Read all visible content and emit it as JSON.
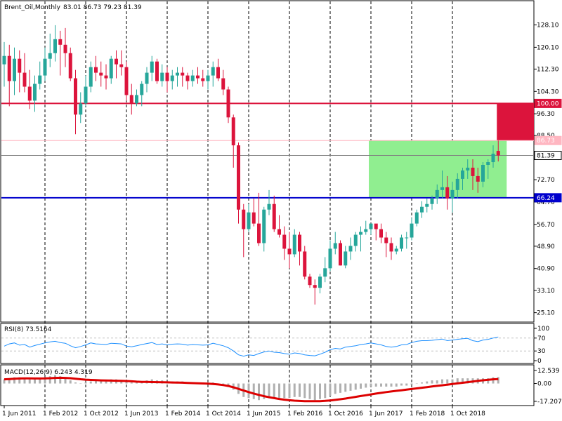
{
  "chart_data": [
    {
      "type": "candlestick",
      "header": {
        "symbol": "Brent_Oil,Monthly",
        "ohlc": "83.01 86.73 79.23 81.39"
      },
      "price_axis_ticks": [
        "128.10",
        "120.10",
        "112.30",
        "104.30",
        "96.30",
        "88.50",
        "80.50",
        "72.70",
        "64.70",
        "56.70",
        "48.90",
        "40.90",
        "33.10",
        "25.10"
      ],
      "price_range": [
        23.5,
        132.0
      ],
      "time_axis_labels": [
        "1 Jun 2011",
        "1 Feb 2012",
        "1 Oct 2012",
        "1 Jun 2013",
        "1 Feb 2014",
        "1 Oct 2014",
        "1 Jun 2015",
        "1 Feb 2016",
        "1 Oct 2016",
        "1 Jun 2017",
        "1 Feb 2018",
        "1 Oct 2018"
      ],
      "grid": "vertical dashed at time labels",
      "levels": [
        {
          "price": 100.0,
          "label": "100.00",
          "color": "#dc143c"
        },
        {
          "price": 86.73,
          "label": "86.73",
          "color": "#ffb6c1"
        },
        {
          "price": 81.39,
          "label": "81.39",
          "color": "#808080"
        },
        {
          "price": 66.24,
          "label": "66.24",
          "color": "#0000cd"
        }
      ],
      "zones": [
        {
          "price_from": 66.24,
          "price_to": 86.73,
          "color": "#90ee90",
          "from_label": "1 Jun 2017",
          "to_label": "1 Oct 2018"
        },
        {
          "price_from": 86.73,
          "price_to": 100.0,
          "color": "#dc143c",
          "from_label": "1 Oct 2018",
          "to_label": "1 Oct 2018"
        }
      ],
      "colors": {
        "bull": "#26a69a",
        "bear": "#dc143c"
      },
      "candles": [
        [
          114,
          122,
          106,
          117
        ],
        [
          117,
          121,
          99,
          108
        ],
        [
          108,
          120,
          103,
          116
        ],
        [
          116,
          119,
          104,
          111
        ],
        [
          111,
          118,
          104,
          106
        ],
        [
          106,
          112,
          98,
          101
        ],
        [
          101,
          110,
          97,
          107
        ],
        [
          107,
          115,
          105,
          110
        ],
        [
          110,
          120,
          108,
          116
        ],
        [
          116,
          125,
          113,
          118
        ],
        [
          118,
          128,
          115,
          123
        ],
        [
          123,
          126,
          110,
          121
        ],
        [
          121,
          127,
          113,
          118
        ],
        [
          118,
          120,
          108,
          109
        ],
        [
          109,
          112,
          89,
          96
        ],
        [
          96,
          104,
          93,
          100
        ],
        [
          100,
          110,
          99,
          106
        ],
        [
          106,
          115,
          104,
          113
        ],
        [
          113,
          117,
          108,
          111
        ],
        [
          111,
          115,
          106,
          110
        ],
        [
          110,
          114,
          105,
          109
        ],
        [
          109,
          117,
          107,
          116
        ],
        [
          116,
          119,
          109,
          114
        ],
        [
          114,
          119,
          110,
          113
        ],
        [
          113,
          115,
          101,
          103
        ],
        [
          103,
          107,
          96,
          100
        ],
        [
          100,
          105,
          99,
          103
        ],
        [
          103,
          108,
          99,
          107
        ],
        [
          107,
          113,
          104,
          111
        ],
        [
          111,
          117,
          108,
          115
        ],
        [
          115,
          116,
          107,
          108
        ],
        [
          108,
          114,
          106,
          111
        ],
        [
          111,
          113,
          104,
          108
        ],
        [
          108,
          112,
          105,
          110
        ],
        [
          110,
          113,
          106,
          111
        ],
        [
          111,
          113,
          106,
          110
        ],
        [
          110,
          111,
          105,
          108
        ],
        [
          108,
          112,
          106,
          110
        ],
        [
          110,
          113,
          107,
          109
        ],
        [
          109,
          112,
          106,
          108
        ],
        [
          108,
          112,
          105,
          110
        ],
        [
          110,
          115,
          106,
          113
        ],
        [
          113,
          116,
          108,
          109
        ],
        [
          109,
          112,
          103,
          105
        ],
        [
          105,
          106,
          93,
          95
        ],
        [
          95,
          96,
          77,
          85
        ],
        [
          85,
          86,
          57,
          62
        ],
        [
          62,
          64,
          45,
          55
        ],
        [
          55,
          64,
          54,
          61
        ],
        [
          61,
          66,
          56,
          57
        ],
        [
          57,
          68,
          49,
          50
        ],
        [
          50,
          63,
          47,
          62
        ],
        [
          62,
          69,
          60,
          64
        ],
        [
          64,
          67,
          54,
          55
        ],
        [
          55,
          60,
          52,
          53
        ],
        [
          53,
          56,
          44,
          48
        ],
        [
          48,
          54,
          41,
          46
        ],
        [
          46,
          55,
          45,
          53
        ],
        [
          53,
          54,
          42,
          47
        ],
        [
          47,
          49,
          37,
          38
        ],
        [
          38,
          39,
          34,
          35
        ],
        [
          35,
          37,
          28,
          34
        ],
        [
          34,
          39,
          32,
          38
        ],
        [
          38,
          45,
          36,
          41
        ],
        [
          41,
          51,
          40,
          48
        ],
        [
          48,
          54,
          46,
          50
        ],
        [
          50,
          51,
          42,
          42
        ],
        [
          42,
          49,
          41,
          47
        ],
        [
          47,
          52,
          44,
          49
        ],
        [
          49,
          54,
          47,
          53
        ],
        [
          53,
          56,
          47,
          54
        ],
        [
          54,
          58,
          53,
          55
        ],
        [
          55,
          57,
          53,
          57
        ],
        [
          57,
          56,
          51,
          55
        ],
        [
          55,
          57,
          50,
          52
        ],
        [
          52,
          54,
          45,
          50
        ],
        [
          50,
          52,
          44,
          47
        ],
        [
          47,
          49,
          46,
          48
        ],
        [
          48,
          53,
          47,
          52
        ],
        [
          52,
          54,
          48,
          52
        ],
        [
          52,
          59,
          51,
          57
        ],
        [
          57,
          62,
          56,
          61
        ],
        [
          61,
          65,
          59,
          63
        ],
        [
          63,
          66,
          61,
          64
        ],
        [
          64,
          67,
          62,
          66
        ],
        [
          66,
          71,
          64,
          69
        ],
        [
          69,
          76,
          66,
          70
        ],
        [
          70,
          74,
          62,
          66
        ],
        [
          66,
          72,
          61,
          69
        ],
        [
          69,
          75,
          66,
          73
        ],
        [
          73,
          77,
          69,
          76
        ],
        [
          76,
          80,
          73,
          77
        ],
        [
          77,
          80,
          69,
          74
        ],
        [
          74,
          77,
          68,
          72
        ],
        [
          72,
          79,
          70,
          78
        ],
        [
          78,
          80,
          73,
          79
        ],
        [
          79,
          85,
          77,
          82
        ],
        [
          83.01,
          86.73,
          79.23,
          81.39
        ]
      ]
    },
    {
      "type": "line",
      "indicator": "RSI",
      "header": "RSI(8) 73.5164",
      "axis_ticks": [
        "100",
        "70",
        "30",
        "0"
      ],
      "levels": [
        70,
        30
      ],
      "color": "#1e90ff",
      "values": [
        45,
        52,
        55,
        48,
        50,
        42,
        47,
        51,
        55,
        58,
        60,
        56,
        54,
        46,
        40,
        44,
        49,
        55,
        52,
        51,
        50,
        54,
        53,
        52,
        45,
        43,
        46,
        50,
        53,
        56,
        50,
        52,
        49,
        51,
        52,
        51,
        48,
        50,
        49,
        48,
        49,
        54,
        50,
        46,
        40,
        30,
        18,
        14,
        18,
        16,
        22,
        27,
        30,
        26,
        25,
        22,
        20,
        24,
        22,
        18,
        16,
        15,
        20,
        26,
        34,
        38,
        36,
        42,
        44,
        46,
        50,
        52,
        55,
        52,
        49,
        44,
        42,
        44,
        49,
        50,
        56,
        60,
        62,
        62,
        63,
        65,
        67,
        62,
        64,
        66,
        68,
        69,
        62,
        59,
        64,
        66,
        70,
        73.5164
      ]
    },
    {
      "type": "bar+line",
      "indicator": "MACD",
      "header": "MACD(12,26,9) 6.243 4.319",
      "axis_ticks": [
        "12.539",
        "0.00",
        "-17.207"
      ],
      "axis_range": [
        -17.207,
        12.539
      ],
      "histogram_color": "#b0b0b0",
      "signal_color": "#dd0000",
      "histogram": [
        4,
        5,
        6,
        6,
        5,
        4,
        4,
        5,
        6,
        7,
        8,
        7,
        5,
        3,
        1,
        0,
        1,
        2,
        3,
        3,
        3,
        4,
        4,
        3,
        2,
        1,
        1,
        2,
        3,
        4,
        3,
        3,
        2,
        2,
        2,
        2,
        1,
        1,
        1,
        1,
        0,
        1,
        0,
        -1,
        -3,
        -6,
        -10,
        -13,
        -14,
        -15,
        -16,
        -15,
        -14,
        -14,
        -14,
        -14,
        -14,
        -13,
        -13,
        -14,
        -15,
        -16,
        -15,
        -14,
        -12,
        -10,
        -9,
        -8,
        -7,
        -6,
        -5,
        -4,
        -3,
        -3,
        -3,
        -3,
        -3,
        -3,
        -2,
        -2,
        -1,
        0,
        1,
        2,
        3,
        3,
        4,
        4,
        4,
        5,
        5,
        5,
        5,
        5,
        5,
        5,
        6,
        6.243
      ],
      "signal": [
        4,
        4.3,
        4.6,
        4.8,
        4.9,
        4.9,
        4.8,
        4.8,
        4.9,
        5.1,
        5.4,
        5.5,
        5.4,
        5.1,
        4.6,
        4.1,
        3.7,
        3.4,
        3.2,
        3.0,
        2.9,
        2.8,
        2.7,
        2.6,
        2.4,
        2.1,
        1.8,
        1.6,
        1.5,
        1.4,
        1.3,
        1.2,
        1.1,
        1.0,
        0.9,
        0.8,
        0.6,
        0.4,
        0.2,
        0.0,
        -0.2,
        -0.5,
        -0.9,
        -1.5,
        -2.4,
        -3.7,
        -5.2,
        -6.8,
        -8.3,
        -9.7,
        -11.0,
        -12.2,
        -13.2,
        -14.1,
        -14.9,
        -15.6,
        -16.1,
        -16.5,
        -16.8,
        -17.0,
        -17.1,
        -17.1,
        -17.0,
        -16.7,
        -16.3,
        -15.8,
        -15.2,
        -14.5,
        -13.7,
        -12.9,
        -12.1,
        -11.3,
        -10.5,
        -9.7,
        -9.0,
        -8.3,
        -7.7,
        -7.1,
        -6.5,
        -5.9,
        -5.3,
        -4.7,
        -4.1,
        -3.5,
        -2.9,
        -2.3,
        -1.7,
        -1.1,
        -0.5,
        0.1,
        0.7,
        1.3,
        1.9,
        2.5,
        3.1,
        3.6,
        4.0,
        4.319
      ]
    }
  ]
}
